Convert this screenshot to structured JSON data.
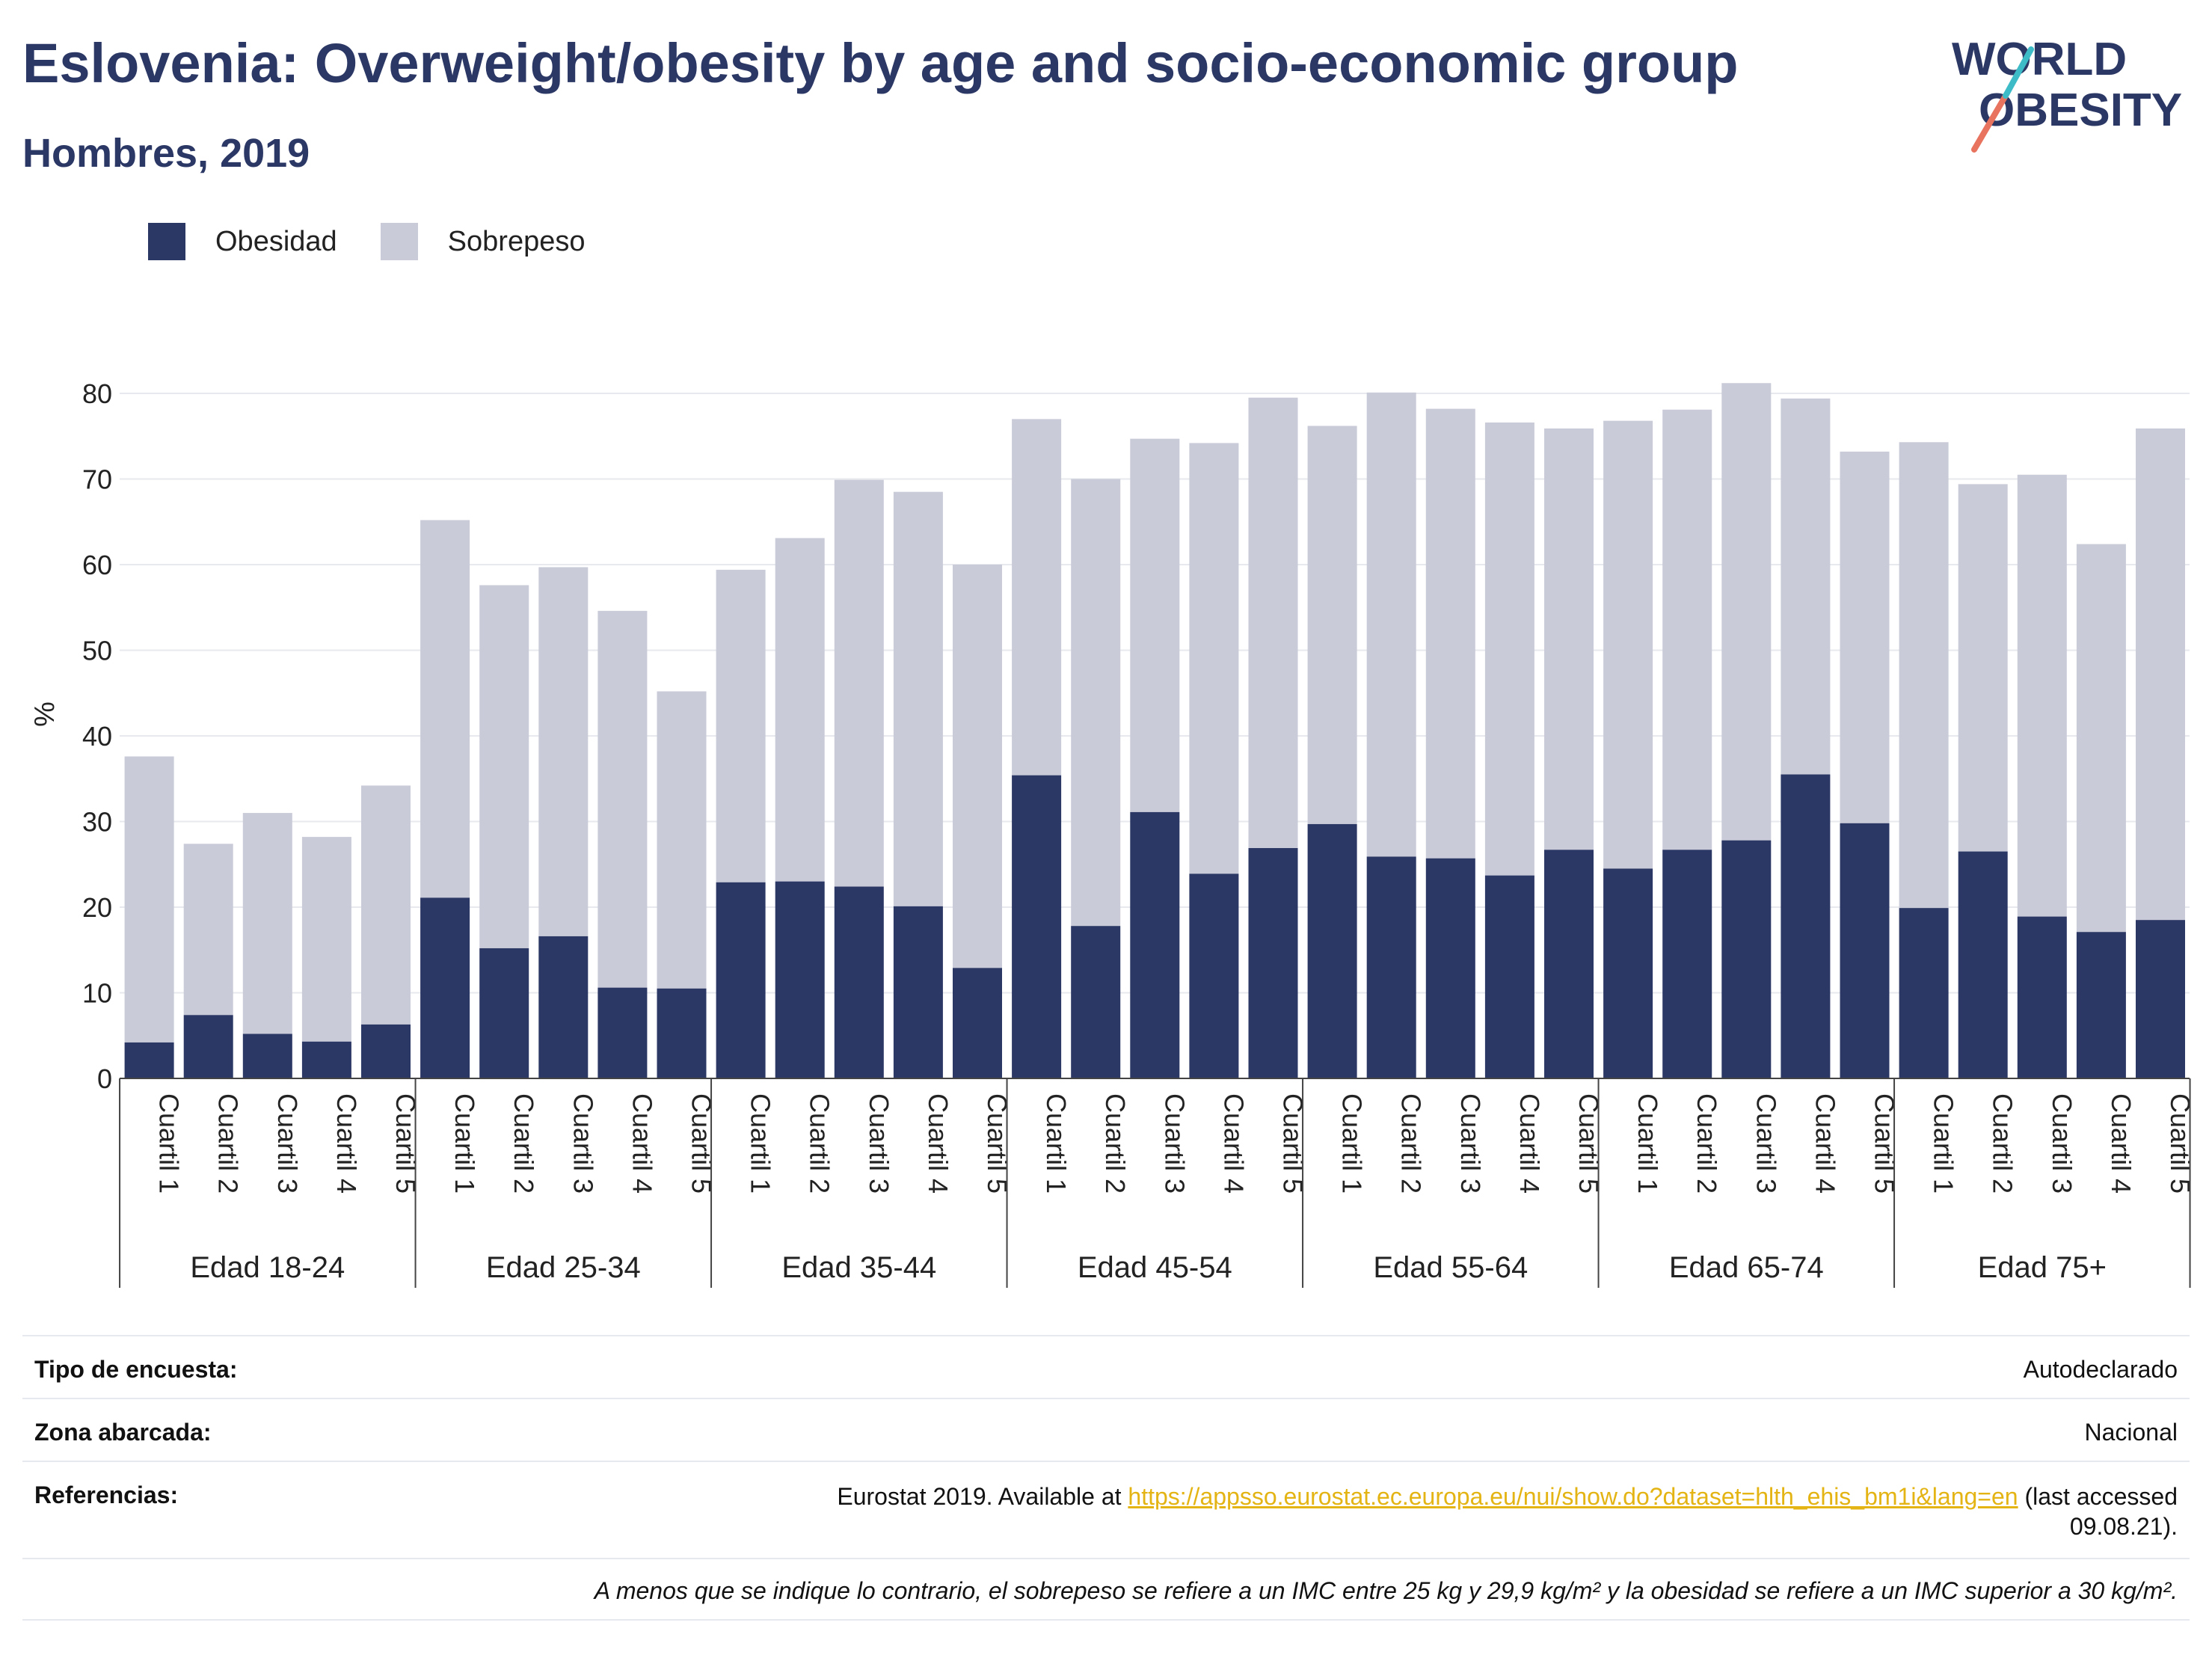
{
  "title": "Eslovenia: Overweight/obesity by age and socio-economic group",
  "subtitle": "Hombres, 2019",
  "logo": {
    "line1": "WORLD",
    "line2": "OBESITY"
  },
  "colors": {
    "obesidad": "#2b3764",
    "sobrepeso": "#c9cbd8",
    "title": "#2b3764",
    "link": "#e3b413"
  },
  "chart_data": {
    "type": "bar",
    "stacked": true,
    "ylabel": "%",
    "ylim": [
      0,
      80
    ],
    "yticks": [
      0,
      10,
      20,
      30,
      40,
      50,
      60,
      70,
      80
    ],
    "grid": true,
    "legend": {
      "position": "top-left",
      "entries": [
        "Obesidad",
        "Sobrepeso"
      ]
    },
    "groups": [
      "Edad 18-24",
      "Edad 25-34",
      "Edad 35-44",
      "Edad 45-54",
      "Edad 55-64",
      "Edad 65-74",
      "Edad 75+"
    ],
    "categories": [
      "Cuartil 1",
      "Cuartil 2",
      "Cuartil 3",
      "Cuartil 4",
      "Cuartil 5"
    ],
    "series": [
      {
        "name": "Obesidad",
        "values": [
          [
            4.2,
            7.4,
            5.2,
            4.3,
            6.3
          ],
          [
            21.1,
            15.2,
            16.6,
            10.6,
            10.5
          ],
          [
            22.9,
            23.0,
            22.4,
            20.1,
            12.9
          ],
          [
            35.4,
            17.8,
            31.1,
            23.9,
            26.9
          ],
          [
            29.7,
            25.9,
            25.7,
            23.7,
            26.7
          ],
          [
            24.5,
            26.7,
            27.8,
            35.5,
            29.8
          ],
          [
            19.9,
            26.5,
            18.9,
            17.1,
            18.5
          ]
        ]
      },
      {
        "name": "Sobrepeso",
        "values": [
          [
            33.4,
            20.0,
            25.8,
            23.9,
            27.9
          ],
          [
            44.1,
            42.4,
            43.1,
            44.0,
            34.7
          ],
          [
            36.5,
            40.1,
            47.5,
            48.4,
            47.1
          ],
          [
            41.6,
            52.2,
            43.6,
            50.3,
            52.6
          ],
          [
            46.5,
            54.2,
            52.5,
            52.9,
            49.2
          ],
          [
            52.3,
            51.4,
            53.4,
            43.9,
            43.4
          ],
          [
            54.4,
            42.9,
            51.6,
            45.3,
            57.4
          ]
        ]
      }
    ]
  },
  "meta": {
    "survey_label": "Tipo de encuesta:",
    "survey_value": "Autodeclarado",
    "area_label": "Zona abarcada:",
    "area_value": "Nacional",
    "ref_label": "Referencias:",
    "ref_prefix": "Eurostat 2019. Available at ",
    "ref_link": "https://appsso.eurostat.ec.europa.eu/nui/show.do?dataset=hlth_ehis_bm1i&lang=en",
    "ref_suffix": " (last accessed",
    "ref_date": "09.08.21).",
    "note": "A menos que se indique lo contrario, el sobrepeso se refiere a un IMC entre 25 kg y 29,9 kg/m² y la obesidad se refiere a un IMC superior a 30 kg/m²."
  }
}
